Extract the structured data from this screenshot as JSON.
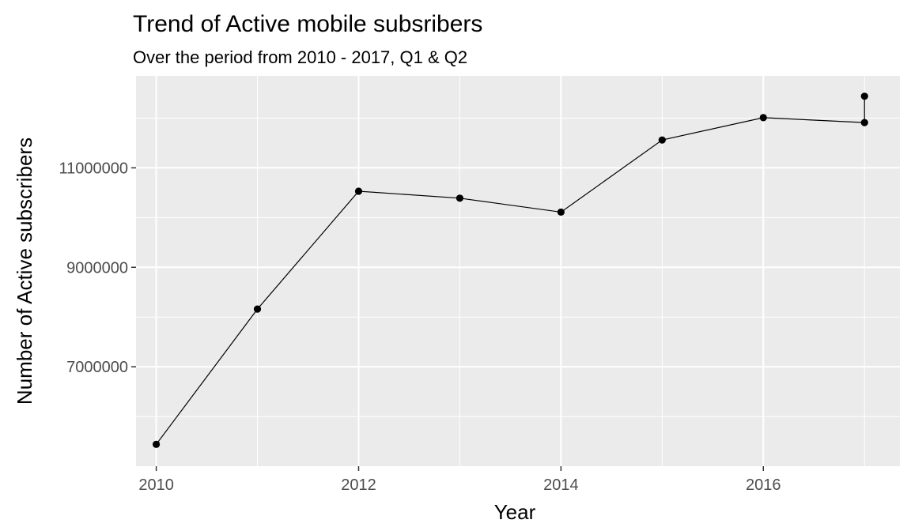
{
  "chart_data": {
    "type": "line",
    "title": "Trend of Active mobile subsribers",
    "subtitle": "Over the period from 2010 - 2017, Q1 & Q2",
    "xlabel": "Year",
    "ylabel": "Number of Active subscribers",
    "x_ticks": [
      2010,
      2012,
      2014,
      2016
    ],
    "y_ticks": [
      7000000,
      9000000,
      11000000
    ],
    "y_tick_labels": [
      "7000000",
      "9000000",
      "11000000"
    ],
    "xlim": [
      2009.8,
      2017.35
    ],
    "ylim": [
      5000000,
      12850000
    ],
    "grid": true,
    "legend": "none",
    "series": [
      {
        "points": [
          {
            "x": 2010,
            "y": 5440000
          },
          {
            "x": 2011,
            "y": 8160000
          },
          {
            "x": 2012,
            "y": 10530000
          },
          {
            "x": 2013,
            "y": 10390000
          },
          {
            "x": 2014,
            "y": 10110000
          },
          {
            "x": 2015,
            "y": 11560000
          },
          {
            "x": 2016,
            "y": 12010000
          },
          {
            "x": 2017,
            "y": 11910000
          },
          {
            "x": 2017,
            "y": 12440000
          }
        ]
      }
    ],
    "colors": {
      "panel": "#ebebeb",
      "grid": "#ffffff",
      "line": "#000000",
      "point": "#000000",
      "tick_text": "#4d4d4d",
      "tick_mark": "#333333"
    }
  }
}
